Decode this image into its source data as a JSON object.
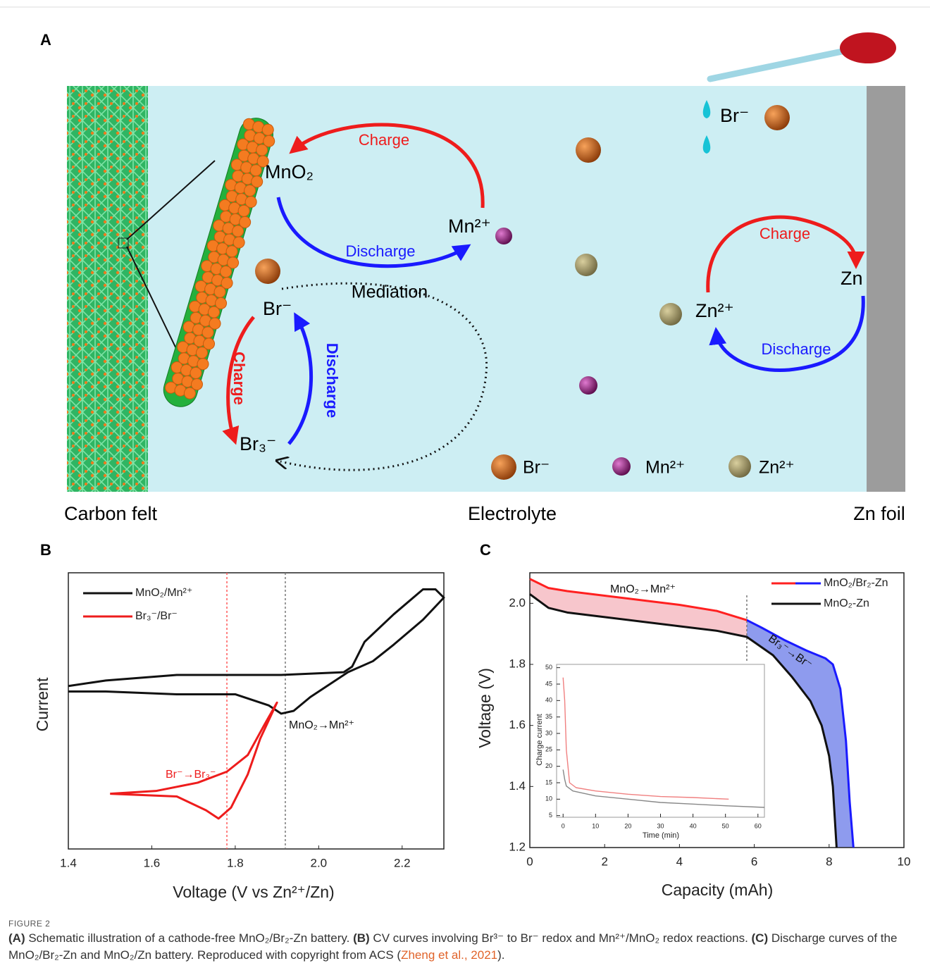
{
  "schematic": {
    "panel_label": "A",
    "labels": [
      "Charge",
      "MnO₂",
      "Mn²⁺",
      "Discharge",
      "Mediation",
      "Br⁻",
      "Charge",
      "Discharge",
      "Br₃⁻",
      "Br⁻",
      "Charge",
      "Zn",
      "Zn²⁺",
      "Discharge",
      "Br⁻",
      "Mn²⁺",
      "Zn²⁺",
      "Carbon felt",
      "Electrolyte",
      "Zn foil"
    ]
  },
  "chart_data": [
    {
      "type": "line",
      "panel_label": "B",
      "xlabel": "Voltage (V vs Zn²⁺/Zn)",
      "ylabel": "Current",
      "xlim": [
        1.4,
        2.3
      ],
      "xticks": [
        1.4,
        1.6,
        1.8,
        {
          "value": 2,
          "label": "2.0"
        },
        2.2
      ],
      "ylim": [
        0,
        1
      ],
      "series": [
        {
          "name": "MnO₂/Mn²⁺",
          "color": "#111111",
          "x": [
            1.4,
            1.49,
            1.66,
            1.91,
            2.06,
            2.08,
            2.11,
            2.18,
            2.25,
            2.28,
            2.3,
            2.25,
            2.18,
            2.13,
            2.07,
            2.05,
            1.98,
            1.94,
            1.91,
            1.88,
            1.8,
            1.66,
            1.49,
            1.4
          ],
          "values": [
            0.59,
            0.61,
            0.63,
            0.63,
            0.64,
            0.66,
            0.75,
            0.85,
            0.94,
            0.94,
            0.91,
            0.83,
            0.74,
            0.68,
            0.64,
            0.62,
            0.55,
            0.5,
            0.49,
            0.52,
            0.56,
            0.56,
            0.57,
            0.57
          ]
        },
        {
          "name": "Br₃⁻/Br⁻",
          "color": "#ee1c1c",
          "x": [
            1.5,
            1.66,
            1.73,
            1.76,
            1.79,
            1.83,
            1.86,
            1.9,
            1.87,
            1.83,
            1.78,
            1.71,
            1.61,
            1.5
          ],
          "values": [
            0.2,
            0.19,
            0.14,
            0.11,
            0.15,
            0.27,
            0.4,
            0.53,
            0.45,
            0.34,
            0.28,
            0.24,
            0.21,
            0.2
          ]
        }
      ],
      "vlines": [
        {
          "x": 1.78,
          "color": "#ff5a5a"
        },
        {
          "x": 1.92,
          "color": "#777777"
        }
      ],
      "annotations": [
        "MnO₂→Mn²⁺",
        "Br⁻→Br₃⁻"
      ]
    },
    {
      "type": "line",
      "panel_label": "C",
      "xlabel": "Capacity (mAh)",
      "ylabel": "Voltage (V)",
      "xlim": [
        0,
        10
      ],
      "xticks": [
        0,
        2,
        4,
        6,
        8,
        10
      ],
      "ylim": [
        1.2,
        2.1
      ],
      "yticks": [
        1.2,
        1.4,
        1.6,
        1.8,
        {
          "value": 2,
          "label": "2.0"
        }
      ],
      "series": [
        {
          "name": "MnO₂/Br₂-Zn",
          "color": "#ff2020",
          "color_after": "#1a1aff",
          "shade": "#f7c6cc",
          "shade_after": "#8e9bee",
          "x": [
            0,
            0.5,
            1,
            2,
            3,
            4,
            5,
            5.8,
            6.2,
            6.8,
            7.4,
            7.9,
            8.1,
            8.3,
            8.45,
            8.55,
            8.65
          ],
          "values": [
            2.08,
            2.05,
            2.04,
            2.025,
            2.01,
            1.995,
            1.975,
            1.945,
            1.92,
            1.88,
            1.845,
            1.82,
            1.8,
            1.72,
            1.55,
            1.35,
            1.2
          ]
        },
        {
          "name": "MnO₂-Zn",
          "color": "#111111",
          "x": [
            0,
            0.5,
            1,
            2,
            3,
            4,
            5,
            5.8,
            6.5,
            7,
            7.5,
            7.8,
            8,
            8.1,
            8.2
          ],
          "values": [
            2.03,
            1.985,
            1.97,
            1.955,
            1.94,
            1.925,
            1.91,
            1.89,
            1.83,
            1.76,
            1.68,
            1.6,
            1.5,
            1.4,
            1.2
          ]
        }
      ],
      "vlines": [
        {
          "x": 5.8,
          "color": "#777777"
        }
      ],
      "annotations": [
        "MnO₂→Mn²⁺",
        "Br₃⁻→Br⁻"
      ]
    },
    {
      "type": "line",
      "xlabel": "Time (min)",
      "ylabel": "Charge current",
      "xlim": [
        -2,
        62
      ],
      "xticks": [
        0,
        10,
        20,
        30,
        40,
        50,
        60
      ],
      "ylim": [
        4.5,
        51
      ],
      "yticks": [
        5,
        10,
        15,
        20,
        25,
        30,
        35,
        40,
        45,
        50
      ],
      "series": [
        {
          "color": "#f08080",
          "x": [
            0,
            0.5,
            1,
            2,
            4,
            10,
            20,
            30,
            40,
            51
          ],
          "values": [
            47,
            40,
            25,
            15,
            13.5,
            12.5,
            11.5,
            10.8,
            10.5,
            10
          ]
        },
        {
          "color": "#888888",
          "x": [
            0,
            0.5,
            1,
            3,
            10,
            20,
            30,
            40,
            50,
            62
          ],
          "values": [
            19,
            16,
            14,
            12.5,
            11,
            10,
            9,
            8.5,
            8,
            7.5
          ]
        }
      ]
    }
  ],
  "caption": {
    "figure_label": "FIGURE 2",
    "parts": [
      {
        "text": "(A)",
        "bold": true
      },
      {
        "text": " Schematic illustration of a cathode-free MnO₂/Br₂-Zn battery. "
      },
      {
        "text": "(B)",
        "bold": true
      },
      {
        "text": " CV curves involving Br³⁻ to Br⁻ redox and Mn²⁺/MnO₂ redox reactions. "
      },
      {
        "text": "(C)",
        "bold": true
      },
      {
        "text": " Discharge curves of the MnO₂/Br₂-Zn and MnO₂/Zn battery. Reproduced with copyright from ACS ("
      },
      {
        "text": "Zheng et al., 2021",
        "link": true
      },
      {
        "text": ")."
      }
    ]
  }
}
